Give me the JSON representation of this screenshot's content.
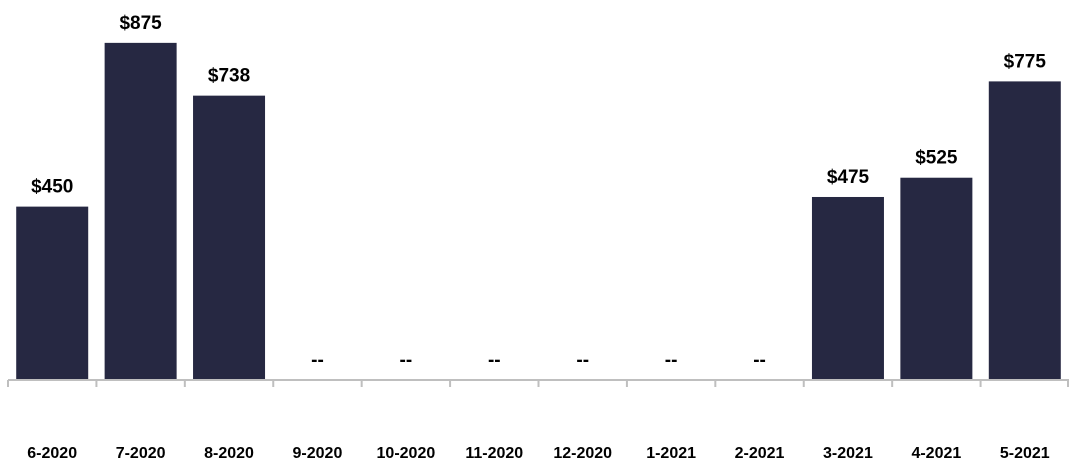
{
  "chart_data": {
    "type": "bar",
    "categories": [
      "6-2020",
      "7-2020",
      "8-2020",
      "9-2020",
      "10-2020",
      "11-2020",
      "12-2020",
      "1-2021",
      "2-2021",
      "3-2021",
      "4-2021",
      "5-2021"
    ],
    "values": [
      450,
      875,
      738,
      null,
      null,
      null,
      null,
      null,
      null,
      475,
      525,
      775
    ],
    "data_labels": [
      "$450",
      "$875",
      "$738",
      "--",
      "--",
      "--",
      "--",
      "--",
      "--",
      "$475",
      "$525",
      "$775"
    ],
    "ylim": [
      0,
      900
    ],
    "grid": false,
    "legend": "none",
    "colors": {
      "bar": "#262842",
      "axis": "#bfbfbf",
      "text": "#000000"
    }
  }
}
